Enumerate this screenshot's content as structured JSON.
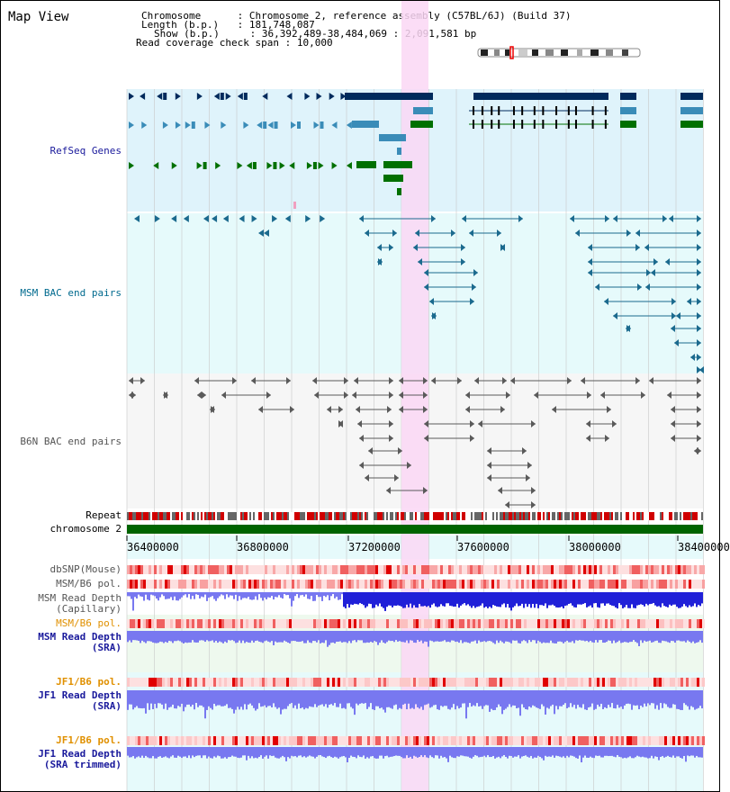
{
  "page": {
    "title": "Map View"
  },
  "info": {
    "chromosome_key": "Chromosome",
    "chromosome_val": "Chromosome 2, reference assembly (C57BL/6J) (Build 37)",
    "length_key": "Length (b.p.)",
    "length_val": "181,748,087",
    "show_key": "Show (b.p.)",
    "show_val": "36,392,489-38,484,069 : 2,091,581 bp",
    "coverage_key": "Read coverage check span",
    "coverage_val": "10,000"
  },
  "tracks": {
    "refseq": "RefSeq Genes",
    "msm_bac": "MSM BAC end pairs",
    "b6n_bac": "B6N BAC end pairs",
    "repeat": "Repeat",
    "chromosome": "chromosome 2",
    "dbsnp": "dbSNP(Mouse)",
    "msm_pol_1": "MSM/B6 pol.",
    "msm_cap_1": "MSM Read Depth",
    "msm_cap_2": "(Capillary)",
    "msm_pol_2": "MSM/B6 pol.",
    "msm_sra_1": "MSM Read Depth",
    "msm_sra_2": "(SRA)",
    "jf1_pol_1": "JF1/B6 pol.",
    "jf1_sra_1": "JF1 Read Depth",
    "jf1_sra_2": "(SRA)",
    "jf1_pol_2": "JF1/B6 pol.",
    "jf1_trim_1": "JF1 Read Depth",
    "jf1_trim_2": "(SRA trimmed)"
  },
  "axis": {
    "ticks": [
      "36400000",
      "36800000",
      "37200000",
      "37600000",
      "38000000",
      "38400000"
    ]
  },
  "colors": {
    "refseq_bg": "#dff3fb",
    "msm_bac_bg": "#e6fafb",
    "b6n_bac_bg": "#f6f6f6",
    "highlight": "#fad7f5",
    "gene_dark": "#002a5c",
    "gene_mid": "#3a8cb8",
    "gene_green": "#007000",
    "msm_bac": "#1b6a8e",
    "b6n_bac": "#5a5a5a",
    "label_blue": "#1a1a9c",
    "label_teal": "#006a8e",
    "label_gray": "#555555",
    "label_orange": "#e09000",
    "depth_blue": "#2020d8",
    "depth_light": "#7878f0",
    "chromosome_green": "#006400",
    "repeat_red": "#d00000"
  }
}
